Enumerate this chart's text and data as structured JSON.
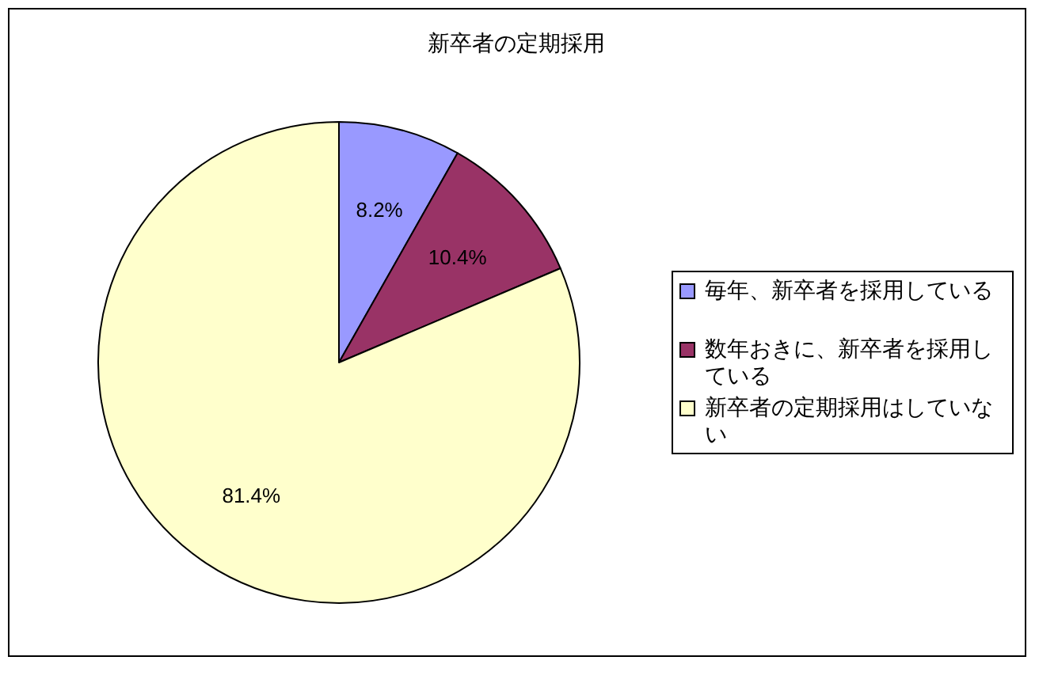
{
  "chart_data": {
    "type": "pie",
    "title": "新卒者の定期採用",
    "categories": [
      "毎年、新卒者を採用している",
      "数年おきに、新卒者を採用している",
      "新卒者の定期採用はしていない"
    ],
    "values": [
      8.2,
      10.4,
      81.4
    ],
    "colors": [
      "#9999ff",
      "#993366",
      "#ffffcc"
    ],
    "value_labels": [
      "8.2%",
      "10.4%",
      "81.4%"
    ],
    "legend": "right"
  }
}
